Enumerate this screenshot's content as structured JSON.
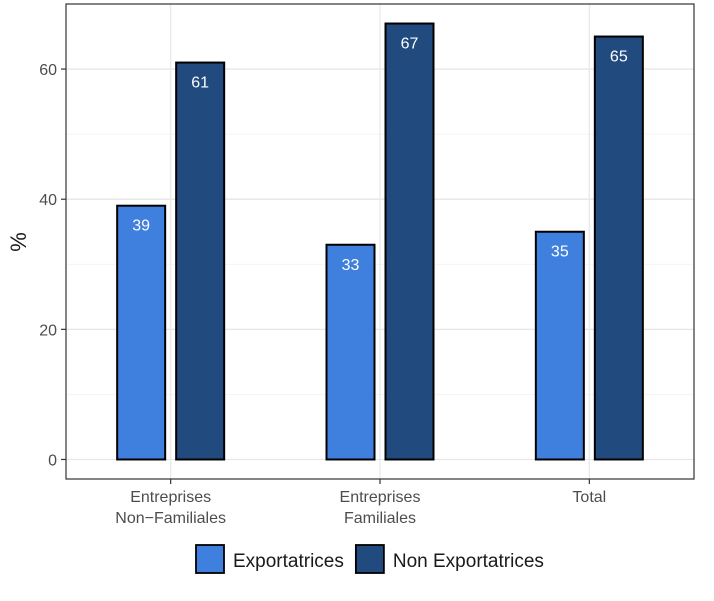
{
  "chart_data": {
    "type": "bar",
    "categories": [
      [
        "Entreprises",
        "Non−Familiales"
      ],
      [
        "Entreprises",
        "Familiales"
      ],
      [
        "Total"
      ]
    ],
    "series": [
      {
        "name": "Exportatrices",
        "values": [
          39,
          33,
          35
        ],
        "color": "#3f7fde"
      },
      {
        "name": "Non Exportatrices",
        "values": [
          61,
          67,
          65
        ],
        "color": "#214a7e"
      }
    ],
    "title": "",
    "xlabel": "",
    "ylabel": "%",
    "ylim": [
      -3,
      70
    ],
    "yticks": [
      0,
      20,
      40,
      60
    ],
    "grid": true,
    "legend_position": "bottom"
  }
}
